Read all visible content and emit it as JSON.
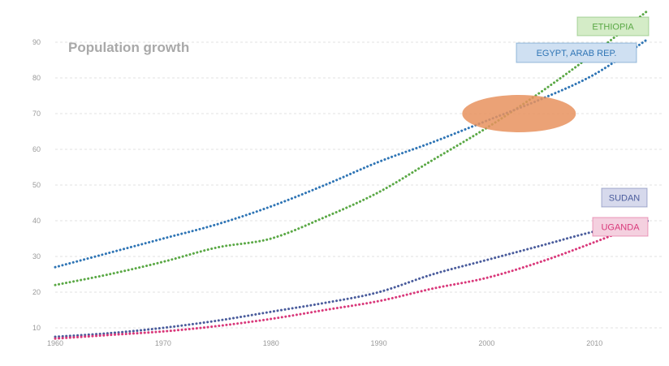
{
  "chart_data": {
    "type": "line",
    "title": "Population growth",
    "xlabel": "",
    "ylabel": "",
    "xlim": [
      1960,
      2016
    ],
    "ylim": [
      5,
      95
    ],
    "x_ticks": [
      1960,
      1970,
      1980,
      1990,
      2000,
      2010
    ],
    "y_ticks": [
      10,
      20,
      30,
      40,
      50,
      60,
      70,
      80,
      90
    ],
    "grid": true,
    "legend": "direct labels at line ends",
    "x": [
      1960,
      1965,
      1970,
      1975,
      1980,
      1985,
      1990,
      1995,
      2000,
      2005,
      2010,
      2015
    ],
    "series": [
      {
        "name": "ETHIOPIA",
        "color": "#5aa845",
        "label_bg": "#d4ecc7",
        "values": [
          22,
          25,
          28.5,
          32.5,
          35,
          41,
          48,
          57,
          66,
          76,
          87,
          99
        ]
      },
      {
        "name": "EGYPT, ARAB REP.",
        "color": "#2f75b5",
        "label_bg": "#cfe0f2",
        "values": [
          27,
          31,
          35,
          39,
          44,
          50,
          56.5,
          62,
          68,
          74,
          81,
          91
        ]
      },
      {
        "name": "SUDAN",
        "color": "#4a5c9c",
        "label_bg": "#d6d9ec",
        "values": [
          7.5,
          8.5,
          10,
          12,
          14.5,
          17,
          20,
          25,
          29,
          33,
          37,
          40
        ]
      },
      {
        "name": "UGANDA",
        "color": "#d9387a",
        "label_bg": "#f4d0df",
        "values": [
          7,
          8,
          9,
          10.5,
          12.5,
          15,
          17.5,
          21,
          24,
          28.5,
          34,
          40
        ]
      }
    ],
    "highlight": {
      "type": "ellipse",
      "color": "#e8925e",
      "x": 2003,
      "y": 70
    }
  }
}
